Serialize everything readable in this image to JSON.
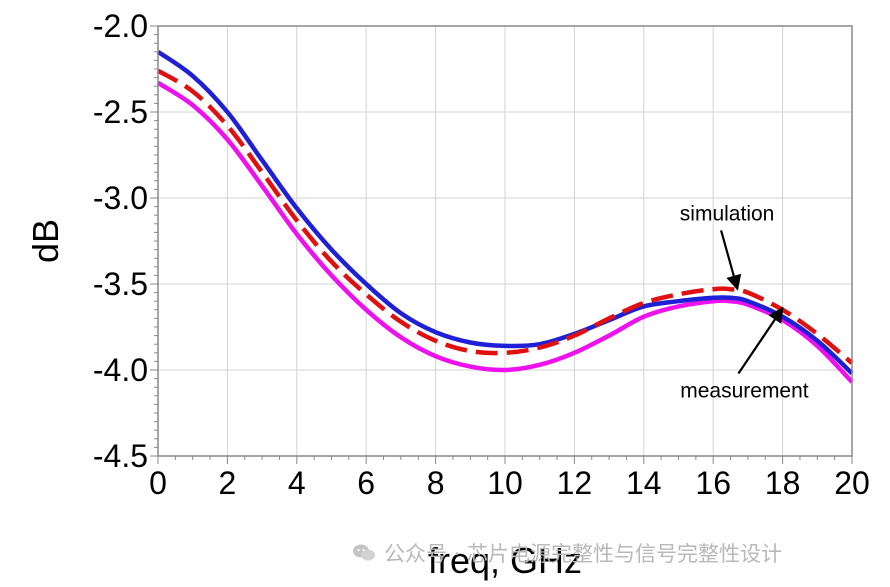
{
  "chart_data": {
    "type": "line",
    "title": "",
    "xlabel": "freq, GHz",
    "ylabel": "dB",
    "xlim": [
      0,
      20
    ],
    "ylim": [
      -4.5,
      -2.0
    ],
    "xticks": [
      "0",
      "2",
      "4",
      "6",
      "8",
      "10",
      "12",
      "14",
      "16",
      "18",
      "20"
    ],
    "yticks": [
      "-2.0",
      "-2.5",
      "-3.0",
      "-3.5",
      "-4.0",
      "-4.5"
    ],
    "grid": true,
    "series": [
      {
        "color": "#1f1fd6",
        "dashed": false,
        "x": [
          0,
          1,
          2,
          3,
          4,
          5,
          6,
          7,
          8,
          9,
          10,
          11,
          12,
          13,
          14,
          15,
          16,
          16.5,
          17,
          18,
          19,
          20
        ],
        "y": [
          -2.15,
          -2.29,
          -2.5,
          -2.78,
          -3.06,
          -3.3,
          -3.5,
          -3.67,
          -3.78,
          -3.84,
          -3.86,
          -3.85,
          -3.79,
          -3.71,
          -3.63,
          -3.6,
          -3.58,
          -3.58,
          -3.6,
          -3.69,
          -3.83,
          -4.02
        ]
      },
      {
        "color": "#e01010",
        "dashed": true,
        "x": [
          0,
          1,
          2,
          3,
          4,
          5,
          6,
          7,
          8,
          9,
          10,
          11,
          12,
          13,
          14,
          15,
          16,
          16.5,
          17,
          18,
          19,
          20
        ],
        "y": [
          -2.26,
          -2.38,
          -2.58,
          -2.85,
          -3.13,
          -3.37,
          -3.56,
          -3.72,
          -3.83,
          -3.89,
          -3.9,
          -3.87,
          -3.8,
          -3.7,
          -3.61,
          -3.56,
          -3.53,
          -3.53,
          -3.55,
          -3.65,
          -3.79,
          -3.96
        ]
      },
      {
        "color": "#ee10ee",
        "dashed": false,
        "x": [
          0,
          1,
          2,
          3,
          4,
          5,
          6,
          7,
          8,
          9,
          10,
          11,
          12,
          13,
          14,
          15,
          16,
          16.5,
          17,
          18,
          19,
          20
        ],
        "y": [
          -2.33,
          -2.46,
          -2.66,
          -2.93,
          -3.21,
          -3.45,
          -3.65,
          -3.81,
          -3.92,
          -3.98,
          -4.0,
          -3.97,
          -3.9,
          -3.8,
          -3.69,
          -3.63,
          -3.6,
          -3.6,
          -3.62,
          -3.71,
          -3.86,
          -4.07
        ]
      }
    ],
    "annotations": [
      {
        "text": "simulation",
        "text_x": 16.4,
        "text_y": -3.13,
        "arrow_to_x": 16.7,
        "arrow_to_y": -3.53
      },
      {
        "text": "measurement",
        "text_x": 16.9,
        "text_y": -4.16,
        "arrow_to_x": 18.0,
        "arrow_to_y": -3.64
      }
    ]
  },
  "watermark": {
    "text": "公众号 · 芯片电源完整性与信号完整性设计"
  }
}
